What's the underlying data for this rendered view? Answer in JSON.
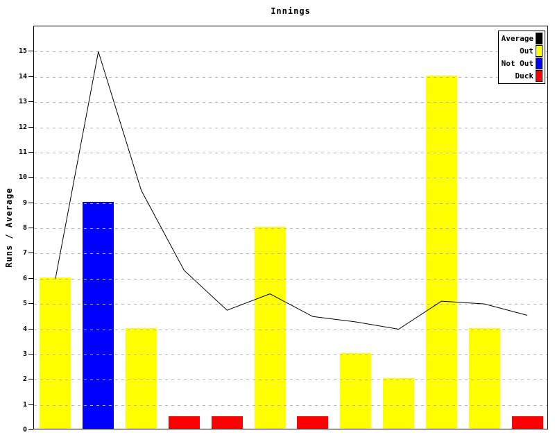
{
  "title": "Innings",
  "y_axis": {
    "label": "Runs / Average",
    "tick_labels": [
      "0",
      "1",
      "2",
      "3",
      "4",
      "5",
      "6",
      "7",
      "8",
      "9",
      "10",
      "11",
      "12",
      "13",
      "14",
      "15"
    ]
  },
  "legend": {
    "position": "top-right",
    "entries": [
      {
        "label": "Average",
        "color": "#000000",
        "kind": "line"
      },
      {
        "label": "Out",
        "color": "#ffff00",
        "kind": "bar"
      },
      {
        "label": "Not Out",
        "color": "#0000ff",
        "kind": "bar"
      },
      {
        "label": "Duck",
        "color": "#ff0000",
        "kind": "bar"
      }
    ]
  },
  "chart_data": {
    "type": "bar",
    "title": "Innings",
    "xlabel": "",
    "ylabel": "Runs / Average",
    "ylim": [
      0,
      16
    ],
    "yticks": [
      0,
      1,
      2,
      3,
      4,
      5,
      6,
      7,
      8,
      9,
      10,
      11,
      12,
      13,
      14,
      15
    ],
    "grid": "horizontal-dashed",
    "legend_position": "top-right",
    "x": [
      1,
      2,
      3,
      4,
      5,
      6,
      7,
      8,
      9,
      10,
      11,
      12
    ],
    "bars": {
      "runs": [
        6,
        9,
        4,
        0,
        0,
        8,
        0,
        3,
        2,
        14,
        4,
        0
      ],
      "status": [
        "Out",
        "Not Out",
        "Out",
        "Duck",
        "Duck",
        "Out",
        "Duck",
        "Out",
        "Out",
        "Out",
        "Out",
        "Duck"
      ],
      "display_heights": [
        6,
        9,
        4,
        0.5,
        0.5,
        8,
        0.5,
        3,
        2,
        14,
        4,
        0.5
      ]
    },
    "series": [
      {
        "name": "Average",
        "type": "line",
        "color": "#000000",
        "values": [
          6.0,
          15.0,
          9.5,
          6.33,
          4.75,
          5.4,
          4.5,
          4.29,
          4.0,
          5.11,
          5.0,
          4.55
        ]
      }
    ],
    "colors": {
      "Out": "#ffff00",
      "Not Out": "#0000ff",
      "Duck": "#ff0000",
      "Average": "#000000",
      "grid": "#b4b4b4",
      "background": "#ffffff"
    }
  }
}
